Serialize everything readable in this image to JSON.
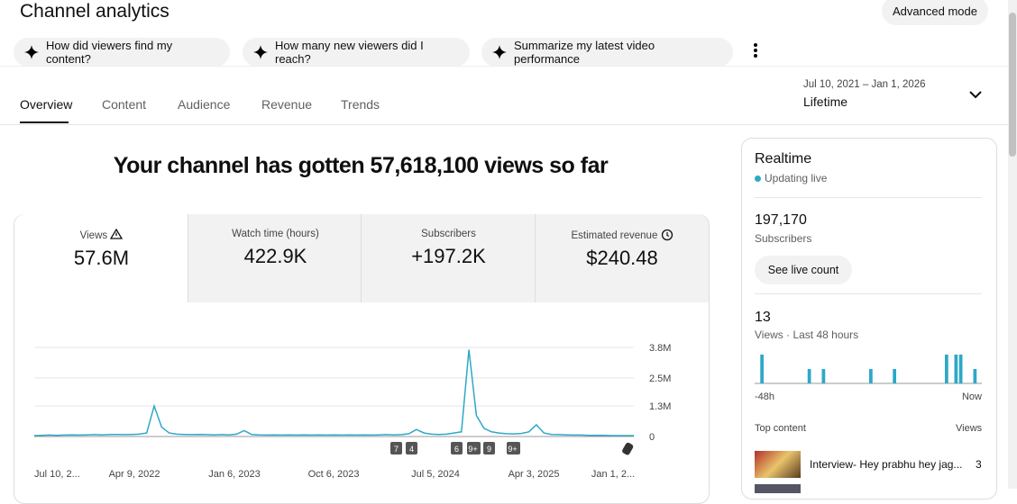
{
  "header": {
    "title": "Channel analytics",
    "mode_button": "Advanced mode"
  },
  "suggestions": [
    "How did viewers find my content?",
    "How many new viewers did I reach?",
    "Summarize my latest video performance"
  ],
  "tabs": [
    "Overview",
    "Content",
    "Audience",
    "Revenue",
    "Trends"
  ],
  "date_range": {
    "range": "Jul 10, 2021 – Jan 1, 2026",
    "label": "Lifetime"
  },
  "headline": "Your channel has gotten 57,618,100 views so far",
  "metrics": [
    {
      "label": "Views",
      "value": "57.6M"
    },
    {
      "label": "Watch time (hours)",
      "value": "422.9K"
    },
    {
      "label": "Subscribers",
      "value": "+197.2K"
    },
    {
      "label": "Estimated revenue",
      "value": "$240.48"
    }
  ],
  "views_chart": {
    "type": "line",
    "color": "#2ea8c7",
    "ylim": [
      0,
      3800000
    ],
    "yticks": [
      0,
      {
        "value": 1300000,
        "label": "1.3M"
      },
      {
        "value": 2500000,
        "label": "2.5M"
      },
      {
        "value": 3800000,
        "label": "3.8M"
      }
    ],
    "x_tick_labels": [
      "Jul 10, 2...",
      "Apr 9, 2022",
      "Jan 6, 2023",
      "Oct 6, 2023",
      "Jul 5, 2024",
      "Apr 3, 2025",
      "Jan 1, 2..."
    ],
    "annotations": [
      "7",
      "4",
      "6",
      "9+",
      "9",
      "9+"
    ],
    "values": [
      40000,
      50000,
      60000,
      50000,
      60000,
      70000,
      60000,
      70000,
      80000,
      70000,
      80000,
      90000,
      80000,
      90000,
      100000,
      150000,
      1300000,
      400000,
      150000,
      100000,
      90000,
      80000,
      90000,
      80000,
      70000,
      80000,
      70000,
      100000,
      250000,
      90000,
      70000,
      60000,
      70000,
      60000,
      70000,
      60000,
      70000,
      60000,
      70000,
      60000,
      70000,
      60000,
      70000,
      60000,
      70000,
      60000,
      70000,
      80000,
      70000,
      80000,
      120000,
      300000,
      150000,
      100000,
      90000,
      100000,
      150000,
      200000,
      3700000,
      900000,
      350000,
      200000,
      150000,
      120000,
      110000,
      130000,
      200000,
      500000,
      150000,
      90000,
      80000,
      70000,
      60000,
      60000,
      50000,
      50000,
      50000,
      40000,
      40000,
      40000,
      40000
    ]
  },
  "realtime": {
    "title": "Realtime",
    "status": "Updating live",
    "subscribers_value": "197,170",
    "subscribers_label": "Subscribers",
    "live_button": "See live count",
    "views_value": "13",
    "views_label": "Views · Last 48 hours",
    "chart": {
      "type": "bar",
      "color": "#2ea8c7",
      "start_label": "-48h",
      "end_label": "Now",
      "values": [
        0,
        2,
        0,
        0,
        0,
        0,
        0,
        0,
        0,
        0,
        0,
        1,
        0,
        0,
        1,
        0,
        0,
        0,
        0,
        0,
        0,
        0,
        0,
        0,
        1,
        0,
        0,
        0,
        0,
        1,
        0,
        0,
        0,
        0,
        0,
        0,
        0,
        0,
        0,
        0,
        2,
        0,
        2,
        2,
        0,
        0,
        1,
        0
      ]
    },
    "top_content_label": "Top content",
    "top_views_label": "Views",
    "top_content": [
      {
        "title": "Interview- Hey prabhu hey jag...",
        "views": "3"
      }
    ]
  }
}
